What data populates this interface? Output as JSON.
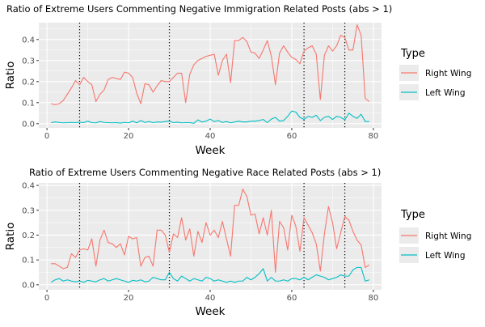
{
  "chart_data": [
    {
      "type": "line",
      "title": "Ratio of Extreme Users Commenting Negative Immigration Related Posts (abs > 1)",
      "xlabel": "Week",
      "ylabel": "Ratio",
      "xlim": [
        -2,
        82
      ],
      "ylim": [
        -0.02,
        0.48
      ],
      "xticks": [
        0,
        20,
        40,
        60,
        80
      ],
      "yticks": [
        0.0,
        0.1,
        0.2,
        0.3,
        0.4
      ],
      "ytick_labels": [
        "0.0",
        "0.1",
        "0.2",
        "0.3",
        "0.4"
      ],
      "vlines": [
        8,
        30,
        63,
        73
      ],
      "legend_title": "Type",
      "series": [
        {
          "name": "Right Wing",
          "color": "#F8766D",
          "x": [
            1,
            2,
            3,
            4,
            5,
            6,
            7,
            8,
            9,
            10,
            11,
            12,
            13,
            14,
            15,
            16,
            17,
            18,
            19,
            20,
            21,
            22,
            23,
            24,
            25,
            26,
            27,
            28,
            29,
            30,
            31,
            32,
            33,
            34,
            35,
            36,
            37,
            38,
            39,
            40,
            41,
            42,
            43,
            44,
            45,
            46,
            47,
            48,
            49,
            50,
            51,
            52,
            53,
            54,
            55,
            56,
            57,
            58,
            59,
            60,
            61,
            62,
            63,
            64,
            65,
            66,
            67,
            68,
            69,
            70,
            71,
            72,
            73,
            74,
            75,
            76,
            77,
            78,
            79
          ],
          "values": [
            0.095,
            0.09,
            0.095,
            0.11,
            0.14,
            0.17,
            0.205,
            0.185,
            0.22,
            0.2,
            0.185,
            0.105,
            0.14,
            0.16,
            0.21,
            0.22,
            0.215,
            0.21,
            0.245,
            0.24,
            0.22,
            0.145,
            0.095,
            0.19,
            0.185,
            0.15,
            0.18,
            0.205,
            0.2,
            0.2,
            0.22,
            0.24,
            0.24,
            0.1,
            0.235,
            0.28,
            0.3,
            0.31,
            0.32,
            0.325,
            0.33,
            0.23,
            0.3,
            0.33,
            0.195,
            0.395,
            0.395,
            0.41,
            0.39,
            0.34,
            0.335,
            0.31,
            0.35,
            0.395,
            0.32,
            0.185,
            0.335,
            0.37,
            0.34,
            0.315,
            0.305,
            0.285,
            0.345,
            0.36,
            0.37,
            0.33,
            0.115,
            0.325,
            0.37,
            0.345,
            0.37,
            0.42,
            0.41,
            0.35,
            0.35,
            0.47,
            0.42,
            0.12,
            0.105
          ]
        },
        {
          "name": "Left Wing",
          "color": "#00BFC4",
          "x": [
            1,
            2,
            3,
            4,
            5,
            6,
            7,
            8,
            9,
            10,
            11,
            12,
            13,
            14,
            15,
            16,
            17,
            18,
            19,
            20,
            21,
            22,
            23,
            24,
            25,
            26,
            27,
            28,
            29,
            30,
            31,
            32,
            33,
            34,
            35,
            36,
            37,
            38,
            39,
            40,
            41,
            42,
            43,
            44,
            45,
            46,
            47,
            48,
            49,
            50,
            51,
            52,
            53,
            54,
            55,
            56,
            57,
            58,
            59,
            60,
            61,
            62,
            63,
            64,
            65,
            66,
            67,
            68,
            69,
            70,
            71,
            72,
            73,
            74,
            75,
            76,
            77,
            78,
            79
          ],
          "values": [
            0.005,
            0.008,
            0.006,
            0.004,
            0.005,
            0.006,
            0.005,
            0.007,
            0.005,
            0.012,
            0.005,
            0.004,
            0.01,
            0.006,
            0.005,
            0.004,
            0.005,
            0.003,
            0.006,
            0.004,
            0.012,
            0.004,
            0.015,
            0.006,
            0.01,
            0.005,
            0.008,
            0.007,
            0.01,
            0.012,
            0.005,
            0.007,
            0.004,
            0.005,
            0.005,
            0.002,
            0.018,
            0.008,
            0.012,
            0.022,
            0.01,
            0.015,
            0.006,
            0.01,
            0.004,
            0.008,
            0.012,
            0.008,
            0.008,
            0.012,
            0.012,
            0.015,
            0.02,
            0.005,
            0.022,
            0.03,
            0.012,
            0.015,
            0.035,
            0.06,
            0.055,
            0.03,
            0.02,
            0.035,
            0.03,
            0.04,
            0.015,
            0.03,
            0.035,
            0.02,
            0.035,
            0.03,
            0.018,
            0.05,
            0.035,
            0.025,
            0.045,
            0.01,
            0.01
          ]
        }
      ]
    },
    {
      "type": "line",
      "title": "Ratio of Extreme Users Commenting Negative Race Related Posts (abs > 1)",
      "xlabel": "Week",
      "ylabel": "Ratio",
      "xlim": [
        -2,
        82
      ],
      "ylim": [
        -0.02,
        0.41
      ],
      "xticks": [
        0,
        20,
        40,
        60,
        80
      ],
      "yticks": [
        0.0,
        0.1,
        0.2,
        0.3,
        0.4
      ],
      "ytick_labels": [
        "0.0",
        "0.1",
        "0.2",
        "0.3",
        "0.4"
      ],
      "vlines": [
        8,
        30,
        63,
        73
      ],
      "legend_title": "Type",
      "series": [
        {
          "name": "Right Wing",
          "color": "#F8766D",
          "x": [
            1,
            2,
            3,
            4,
            5,
            6,
            7,
            8,
            9,
            10,
            11,
            12,
            13,
            14,
            15,
            16,
            17,
            18,
            19,
            20,
            21,
            22,
            23,
            24,
            25,
            26,
            27,
            28,
            29,
            30,
            31,
            32,
            33,
            34,
            35,
            36,
            37,
            38,
            39,
            40,
            41,
            42,
            43,
            44,
            45,
            46,
            47,
            48,
            49,
            50,
            51,
            52,
            53,
            54,
            55,
            56,
            57,
            58,
            59,
            60,
            61,
            62,
            63,
            64,
            65,
            66,
            67,
            68,
            69,
            70,
            71,
            72,
            73,
            74,
            75,
            76,
            77,
            78,
            79
          ],
          "values": [
            0.085,
            0.085,
            0.075,
            0.065,
            0.07,
            0.125,
            0.11,
            0.14,
            0.145,
            0.14,
            0.185,
            0.075,
            0.18,
            0.22,
            0.17,
            0.165,
            0.15,
            0.165,
            0.12,
            0.195,
            0.185,
            0.19,
            0.075,
            0.11,
            0.115,
            0.075,
            0.22,
            0.22,
            0.2,
            0.13,
            0.205,
            0.19,
            0.27,
            0.18,
            0.225,
            0.115,
            0.215,
            0.17,
            0.25,
            0.2,
            0.22,
            0.19,
            0.255,
            0.185,
            0.115,
            0.32,
            0.32,
            0.385,
            0.355,
            0.28,
            0.285,
            0.205,
            0.27,
            0.2,
            0.3,
            0.05,
            0.255,
            0.23,
            0.14,
            0.28,
            0.235,
            0.135,
            0.27,
            0.24,
            0.21,
            0.165,
            0.055,
            0.205,
            0.315,
            0.25,
            0.145,
            0.21,
            0.275,
            0.26,
            0.215,
            0.18,
            0.16,
            0.07,
            0.08
          ]
        },
        {
          "name": "Left Wing",
          "color": "#00BFC4",
          "x": [
            1,
            2,
            3,
            4,
            5,
            6,
            7,
            8,
            9,
            10,
            11,
            12,
            13,
            14,
            15,
            16,
            17,
            18,
            19,
            20,
            21,
            22,
            23,
            24,
            25,
            26,
            27,
            28,
            29,
            30,
            31,
            32,
            33,
            34,
            35,
            36,
            37,
            38,
            39,
            40,
            41,
            42,
            43,
            44,
            45,
            46,
            47,
            48,
            49,
            50,
            51,
            52,
            53,
            54,
            55,
            56,
            57,
            58,
            59,
            60,
            61,
            62,
            63,
            64,
            65,
            66,
            67,
            68,
            69,
            70,
            71,
            72,
            73,
            74,
            75,
            76,
            77,
            78,
            79
          ],
          "values": [
            0.01,
            0.02,
            0.025,
            0.015,
            0.02,
            0.015,
            0.012,
            0.015,
            0.01,
            0.018,
            0.015,
            0.012,
            0.02,
            0.025,
            0.015,
            0.02,
            0.025,
            0.02,
            0.015,
            0.01,
            0.018,
            0.015,
            0.02,
            0.012,
            0.015,
            0.03,
            0.025,
            0.02,
            0.02,
            0.05,
            0.025,
            0.015,
            0.035,
            0.025,
            0.015,
            0.025,
            0.02,
            0.015,
            0.03,
            0.025,
            0.015,
            0.02,
            0.015,
            0.01,
            0.015,
            0.01,
            0.015,
            0.015,
            0.03,
            0.02,
            0.03,
            0.045,
            0.065,
            0.015,
            0.03,
            0.015,
            0.015,
            0.02,
            0.015,
            0.025,
            0.025,
            0.02,
            0.03,
            0.02,
            0.03,
            0.04,
            0.035,
            0.03,
            0.02,
            0.025,
            0.03,
            0.04,
            0.035,
            0.035,
            0.06,
            0.07,
            0.07,
            0.015,
            0.02
          ]
        }
      ]
    }
  ]
}
